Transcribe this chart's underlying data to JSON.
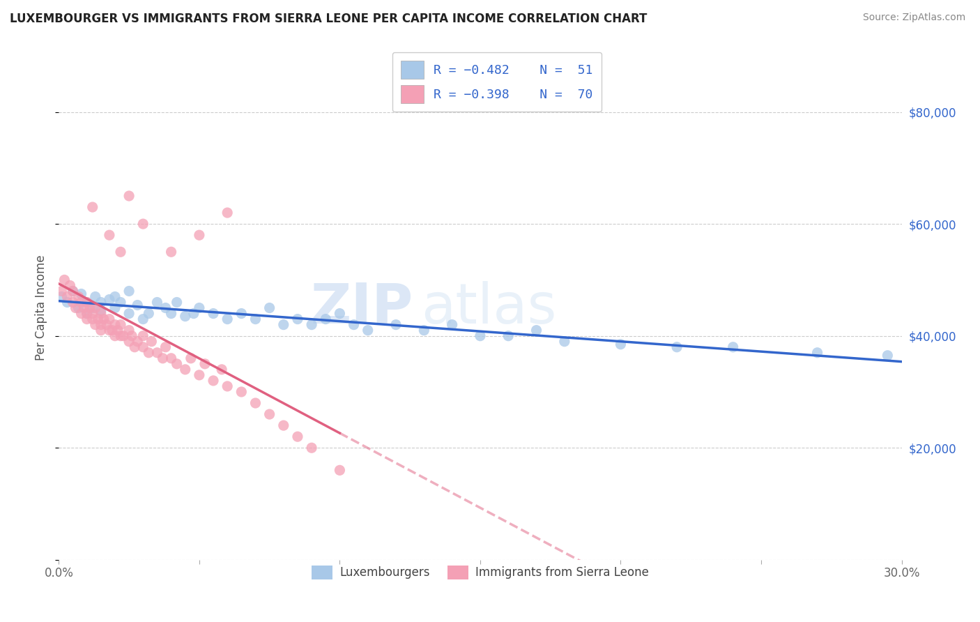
{
  "title": "LUXEMBOURGER VS IMMIGRANTS FROM SIERRA LEONE PER CAPITA INCOME CORRELATION CHART",
  "source": "Source: ZipAtlas.com",
  "ylabel": "Per Capita Income",
  "xlim": [
    0.0,
    0.3
  ],
  "ylim": [
    0,
    90000
  ],
  "yticks": [
    0,
    20000,
    40000,
    60000,
    80000
  ],
  "ytick_labels": [
    "",
    "$20,000",
    "$40,000",
    "$60,000",
    "$80,000"
  ],
  "xticks": [
    0.0,
    0.05,
    0.1,
    0.15,
    0.2,
    0.25,
    0.3
  ],
  "xtick_labels": [
    "0.0%",
    "",
    "",
    "",
    "",
    "",
    "30.0%"
  ],
  "blue_color": "#a8c8e8",
  "pink_color": "#f4a0b5",
  "blue_line_color": "#3366cc",
  "pink_line_color": "#e06080",
  "watermark_zip": "ZIP",
  "watermark_atlas": "atlas",
  "blue_scatter_x": [
    0.001,
    0.003,
    0.005,
    0.007,
    0.008,
    0.01,
    0.01,
    0.012,
    0.013,
    0.015,
    0.015,
    0.018,
    0.02,
    0.02,
    0.022,
    0.025,
    0.025,
    0.028,
    0.03,
    0.032,
    0.035,
    0.038,
    0.04,
    0.042,
    0.045,
    0.048,
    0.05,
    0.055,
    0.06,
    0.065,
    0.07,
    0.075,
    0.08,
    0.085,
    0.09,
    0.095,
    0.1,
    0.105,
    0.11,
    0.12,
    0.13,
    0.14,
    0.15,
    0.16,
    0.17,
    0.18,
    0.2,
    0.22,
    0.24,
    0.27,
    0.295
  ],
  "blue_scatter_y": [
    47000,
    46000,
    48000,
    45000,
    47500,
    46000,
    44000,
    45000,
    47000,
    46000,
    44500,
    46500,
    45000,
    47000,
    46000,
    48000,
    44000,
    45500,
    43000,
    44000,
    46000,
    45000,
    44000,
    46000,
    43500,
    44000,
    45000,
    44000,
    43000,
    44000,
    43000,
    45000,
    42000,
    43000,
    42000,
    43000,
    44000,
    42000,
    41000,
    42000,
    41000,
    42000,
    40000,
    40000,
    41000,
    39000,
    38500,
    38000,
    38000,
    37000,
    36500
  ],
  "pink_scatter_x": [
    0.001,
    0.002,
    0.003,
    0.004,
    0.005,
    0.005,
    0.006,
    0.007,
    0.008,
    0.008,
    0.009,
    0.01,
    0.01,
    0.01,
    0.011,
    0.012,
    0.012,
    0.013,
    0.013,
    0.014,
    0.015,
    0.015,
    0.015,
    0.016,
    0.017,
    0.018,
    0.018,
    0.019,
    0.02,
    0.02,
    0.021,
    0.022,
    0.022,
    0.023,
    0.025,
    0.025,
    0.026,
    0.027,
    0.028,
    0.03,
    0.03,
    0.032,
    0.033,
    0.035,
    0.037,
    0.038,
    0.04,
    0.042,
    0.045,
    0.047,
    0.05,
    0.052,
    0.055,
    0.058,
    0.06,
    0.065,
    0.07,
    0.075,
    0.08,
    0.085,
    0.09,
    0.1,
    0.04,
    0.05,
    0.06,
    0.025,
    0.03,
    0.012,
    0.018,
    0.022
  ],
  "pink_scatter_y": [
    48000,
    50000,
    47000,
    49000,
    46000,
    48000,
    45000,
    47000,
    44000,
    46000,
    45000,
    43000,
    46000,
    44000,
    45000,
    43000,
    44000,
    42000,
    45000,
    43000,
    42000,
    44000,
    41000,
    43000,
    42000,
    41000,
    43000,
    41000,
    40000,
    42000,
    41000,
    40000,
    42000,
    40000,
    39000,
    41000,
    40000,
    38000,
    39000,
    38000,
    40000,
    37000,
    39000,
    37000,
    36000,
    38000,
    36000,
    35000,
    34000,
    36000,
    33000,
    35000,
    32000,
    34000,
    31000,
    30000,
    28000,
    26000,
    24000,
    22000,
    20000,
    16000,
    55000,
    58000,
    62000,
    65000,
    60000,
    63000,
    58000,
    55000
  ]
}
